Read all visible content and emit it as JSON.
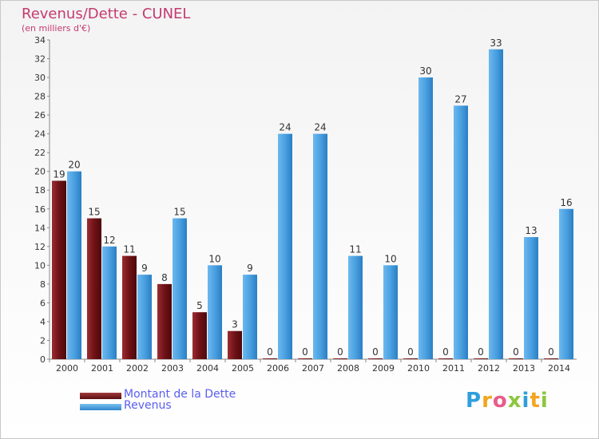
{
  "chart_data": {
    "type": "bar",
    "title": "Revenus/Dette - CUNEL",
    "subtitle": "(en milliers d'€)",
    "categories": [
      "2000",
      "2001",
      "2002",
      "2003",
      "2004",
      "2005",
      "2006",
      "2007",
      "2008",
      "2009",
      "2010",
      "2011",
      "2012",
      "2013",
      "2014"
    ],
    "series": [
      {
        "name": "Montant de la Dette",
        "color": "#7a1a1e",
        "values": [
          19,
          15,
          11,
          8,
          5,
          3,
          0,
          0,
          0,
          0,
          0,
          0,
          0,
          0,
          0
        ]
      },
      {
        "name": "Revenus",
        "color": "#4aa0e0",
        "values": [
          20,
          12,
          9,
          15,
          10,
          9,
          24,
          24,
          11,
          10,
          30,
          27,
          33,
          13,
          16
        ]
      }
    ],
    "ylim": [
      0,
      34
    ],
    "yticks": [
      0,
      2,
      4,
      6,
      8,
      10,
      12,
      14,
      16,
      18,
      20,
      22,
      24,
      26,
      28,
      30,
      32,
      34
    ],
    "legend_position": "bottom-left"
  },
  "logo": {
    "text": "Proxiti",
    "letters": [
      "P",
      "r",
      "o",
      "x",
      "i",
      "t",
      "i"
    ],
    "colors": [
      "#2e9fdc",
      "#f3a51f",
      "#e85a8a",
      "#8cc63f",
      "#2e9fdc",
      "#f3a51f",
      "#8cc63f"
    ]
  }
}
